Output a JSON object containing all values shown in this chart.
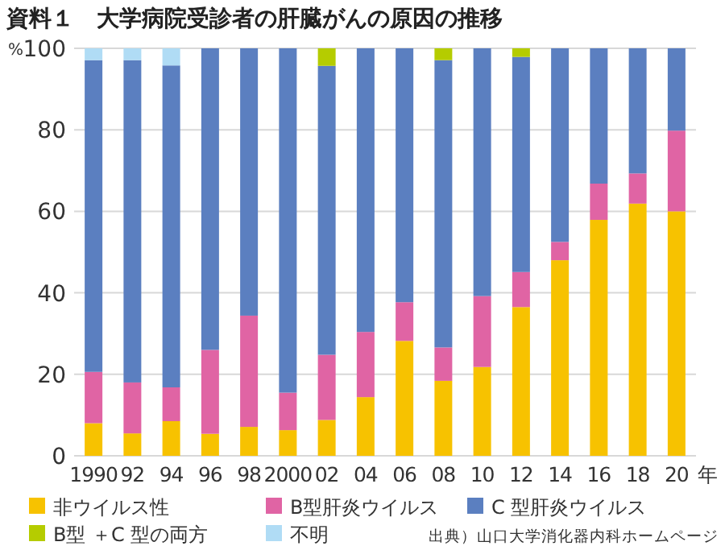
{
  "chart_data": {
    "type": "bar",
    "stacked": true,
    "title": "資料１　大学病院受診者の肝臓がんの原因の推移",
    "ylabel": "%",
    "xlabel": "年",
    "categories": [
      "1990",
      "92",
      "94",
      "96",
      "98",
      "2000",
      "02",
      "04",
      "06",
      "08",
      "10",
      "12",
      "14",
      "16",
      "18",
      "20"
    ],
    "series": [
      {
        "name": "非ウイルス性",
        "color": "#f7c200",
        "values": [
          8.0,
          5.5,
          8.5,
          5.4,
          7.1,
          6.3,
          8.8,
          14.4,
          28.2,
          18.4,
          21.8,
          36.5,
          48.0,
          57.9,
          61.9,
          60.0
        ]
      },
      {
        "name": "B型肝炎ウイルス",
        "color": "#e064a4",
        "values": [
          12.6,
          12.5,
          8.3,
          20.6,
          27.3,
          9.2,
          16.0,
          16.0,
          9.5,
          8.2,
          17.4,
          8.6,
          4.5,
          8.9,
          7.4,
          19.8
        ]
      },
      {
        "name": "C 型肝炎ウイルス",
        "color": "#5b7fc0",
        "values": [
          76.5,
          79.1,
          79.0,
          74.0,
          65.6,
          84.5,
          70.9,
          69.6,
          62.3,
          70.5,
          60.8,
          52.8,
          47.5,
          33.2,
          30.7,
          20.2
        ]
      },
      {
        "name": "B型 ＋C 型の両方",
        "color": "#b5cc00",
        "values": [
          0,
          0,
          0,
          0,
          0,
          0,
          4.3,
          0,
          0,
          2.9,
          0,
          2.1,
          0,
          0,
          0,
          0
        ]
      },
      {
        "name": "不明",
        "color": "#b0dcf5",
        "values": [
          2.9,
          2.9,
          4.2,
          0,
          0,
          0,
          0,
          0,
          0,
          0,
          0,
          0,
          0,
          0,
          0,
          0
        ]
      }
    ],
    "ylim": [
      0,
      100
    ],
    "yticks": [
      0,
      20,
      40,
      60,
      80,
      100
    ],
    "grid": "y",
    "legend": "bottom",
    "annotations": [
      "出典）山口大学消化器内科ホームページ"
    ]
  }
}
